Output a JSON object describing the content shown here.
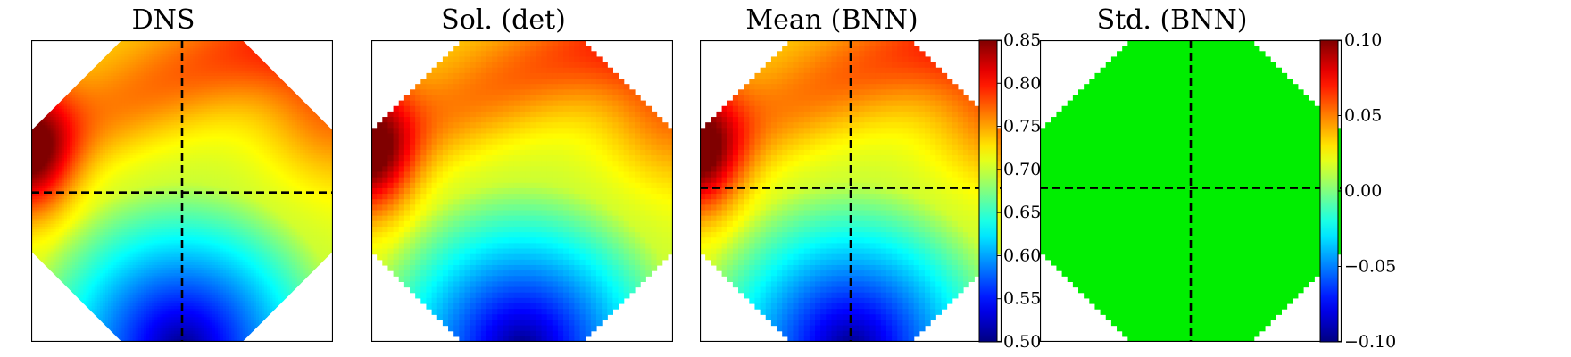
{
  "figure": {
    "panels": [
      {
        "title": "DNS",
        "style": "smooth"
      },
      {
        "title": "Sol. (det)",
        "style": "pixelated"
      },
      {
        "title": "Mean (BNN)",
        "style": "pixelated"
      },
      {
        "title": "Std. (BNN)",
        "style": "flat"
      }
    ],
    "colormap": "jet",
    "accent_colors": {
      "low": "#0000cc",
      "mid": "#00ff00",
      "high": "#ff2000",
      "flat_fill": "#00ee00"
    }
  },
  "chart_data": [
    {
      "type": "heatmap",
      "title": "DNS",
      "domain": "octagon",
      "crosshair": true,
      "value_range": [
        0.5,
        0.85
      ]
    },
    {
      "type": "heatmap",
      "title": "Sol. (det)",
      "domain": "octagon",
      "crosshair": false,
      "value_range": [
        0.5,
        0.85
      ]
    },
    {
      "type": "heatmap",
      "title": "Mean (BNN)",
      "domain": "octagon",
      "crosshair": true,
      "value_range": [
        0.5,
        0.85
      ],
      "colorbar": {
        "ticks": [
          "0.85",
          "0.80",
          "0.75",
          "0.70",
          "0.65",
          "0.60",
          "0.55",
          "0.50"
        ],
        "min": 0.5,
        "max": 0.85
      }
    },
    {
      "type": "heatmap",
      "title": "Std. (BNN)",
      "domain": "octagon",
      "crosshair": true,
      "value": 0.0,
      "colorbar": {
        "ticks": [
          "0.10",
          "0.05",
          "0.00",
          "−0.05",
          "−0.10"
        ],
        "min": -0.1,
        "max": 0.1
      }
    }
  ]
}
